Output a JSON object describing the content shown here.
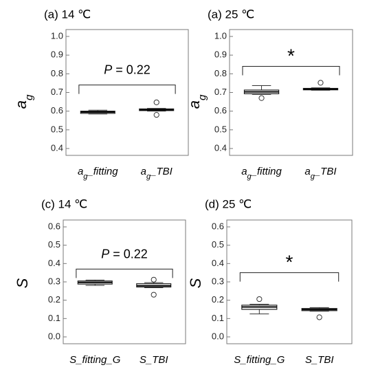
{
  "chart_data": [
    {
      "type": "box",
      "title": "(a) 14 ℃",
      "ylabel": "a_g",
      "ylim": [
        0.4,
        1.0
      ],
      "yticks": [
        "0.4",
        "0.5",
        "0.6",
        "0.7",
        "0.8",
        "0.9",
        "1.0"
      ],
      "yticks_values": [
        0.4,
        0.5,
        0.6,
        0.7,
        0.8,
        0.9,
        1.0
      ],
      "categories": [
        {
          "main": "a",
          "sub": "g",
          "rest": "_fitting"
        },
        {
          "main": "a",
          "sub": "g",
          "rest": "_TBI"
        }
      ],
      "boxes": [
        {
          "whisker_low": 0.585,
          "q1": 0.588,
          "median": 0.595,
          "q3": 0.6,
          "whisker_high": 0.605,
          "outliers": []
        },
        {
          "whisker_low": 0.6,
          "q1": 0.603,
          "median": 0.607,
          "q3": 0.612,
          "whisker_high": 0.615,
          "outliers": [
            0.647,
            0.58
          ]
        }
      ],
      "annotation": {
        "kind": "pvalue",
        "prefix": "P",
        "text": " = 0.22",
        "bracket_y": 0.74
      },
      "grid": false
    },
    {
      "type": "box",
      "title": "(a) 25 ℃",
      "ylabel": "a_g",
      "ylim": [
        0.4,
        1.0
      ],
      "yticks": [
        "0.4",
        "0.5",
        "0.6",
        "0.7",
        "0.8",
        "0.9",
        "1.0"
      ],
      "yticks_values": [
        0.4,
        0.5,
        0.6,
        0.7,
        0.8,
        0.9,
        1.0
      ],
      "categories": [
        {
          "main": "a",
          "sub": "g",
          "rest": "_fitting"
        },
        {
          "main": "a",
          "sub": "g",
          "rest": "_TBI"
        }
      ],
      "boxes": [
        {
          "whisker_low": 0.69,
          "q1": 0.693,
          "median": 0.703,
          "q3": 0.713,
          "whisker_high": 0.737,
          "outliers": [
            0.67
          ]
        },
        {
          "whisker_low": 0.712,
          "q1": 0.714,
          "median": 0.718,
          "q3": 0.722,
          "whisker_high": 0.725,
          "outliers": [
            0.752
          ]
        }
      ],
      "annotation": {
        "kind": "star",
        "text": "*",
        "bracket_y": 0.84
      },
      "grid": false
    },
    {
      "type": "box",
      "title": "(c) 14 ℃",
      "ylabel": "S",
      "ylim": [
        0.0,
        0.6
      ],
      "yticks": [
        "0.0",
        "0.1",
        "0.2",
        "0.3",
        "0.4",
        "0.5",
        "0.6"
      ],
      "yticks_values": [
        0.0,
        0.1,
        0.2,
        0.3,
        0.4,
        0.5,
        0.6
      ],
      "categories": [
        {
          "main": "S",
          "sub": "",
          "rest": "_fitting_G"
        },
        {
          "main": "S",
          "sub": "",
          "rest": "_TBI"
        }
      ],
      "boxes": [
        {
          "whisker_low": 0.281,
          "q1": 0.288,
          "median": 0.297,
          "q3": 0.305,
          "whisker_high": 0.31,
          "outliers": []
        },
        {
          "whisker_low": 0.268,
          "q1": 0.272,
          "median": 0.279,
          "q3": 0.29,
          "whisker_high": 0.296,
          "outliers": [
            0.312,
            0.23
          ]
        }
      ],
      "annotation": {
        "kind": "pvalue",
        "prefix": "P",
        "text": " = 0.22",
        "bracket_y": 0.37
      },
      "grid": false
    },
    {
      "type": "box",
      "title": "(d) 25 ℃",
      "ylabel": "S",
      "ylim": [
        0.0,
        0.6
      ],
      "yticks": [
        "0.0",
        "0.1",
        "0.2",
        "0.3",
        "0.4",
        "0.5",
        "0.6"
      ],
      "yticks_values": [
        0.0,
        0.1,
        0.2,
        0.3,
        0.4,
        0.5,
        0.6
      ],
      "categories": [
        {
          "main": "S",
          "sub": "",
          "rest": "_fitting_G"
        },
        {
          "main": "S",
          "sub": "",
          "rest": "_TBI"
        }
      ],
      "boxes": [
        {
          "whisker_low": 0.125,
          "q1": 0.15,
          "median": 0.163,
          "q3": 0.173,
          "whisker_high": 0.178,
          "outliers": [
            0.206
          ]
        },
        {
          "whisker_low": 0.14,
          "q1": 0.143,
          "median": 0.149,
          "q3": 0.155,
          "whisker_high": 0.16,
          "outliers": [
            0.107
          ]
        }
      ],
      "annotation": {
        "kind": "star",
        "text": "*",
        "bracket_y": 0.35
      },
      "grid": false
    }
  ]
}
